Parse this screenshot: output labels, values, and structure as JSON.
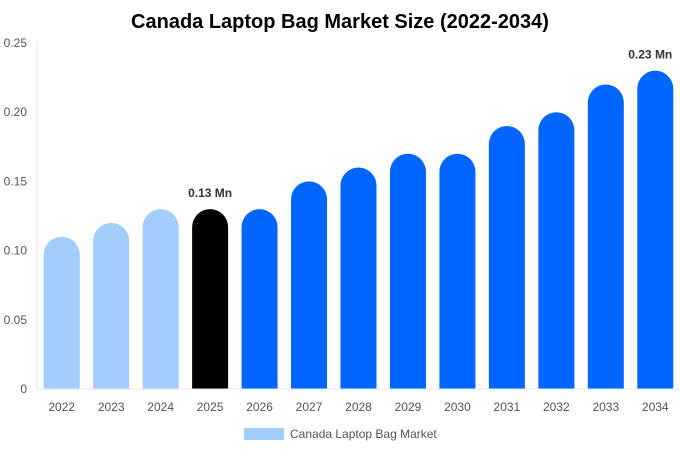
{
  "chart_data": {
    "type": "bar",
    "title": "Canada Laptop Bag Market Size (2022-2034)",
    "xlabel": "",
    "ylabel": "",
    "categories": [
      "2022",
      "2023",
      "2024",
      "2025",
      "2026",
      "2027",
      "2028",
      "2029",
      "2030",
      "2031",
      "2032",
      "2033",
      "2034"
    ],
    "series": [
      {
        "name": "Canada Laptop Bag Market",
        "values": [
          0.11,
          0.12,
          0.13,
          0.13,
          0.13,
          0.15,
          0.16,
          0.17,
          0.17,
          0.19,
          0.2,
          0.22,
          0.23
        ]
      }
    ],
    "ylim": [
      0,
      0.25
    ],
    "yticks": [
      "0",
      "0.05",
      "0.10",
      "0.15",
      "0.20",
      "0.25"
    ],
    "data_labels": [
      {
        "category": "2025",
        "text": "0.13 Mn"
      },
      {
        "category": "2034",
        "text": "0.23 Mn"
      }
    ],
    "grid": false,
    "legend_position": "bottom",
    "colors": {
      "historical": "#a3cdfd",
      "base_year": "#000000",
      "forecast": "#0066ff",
      "legend_swatch": "#a3cdfd"
    }
  }
}
